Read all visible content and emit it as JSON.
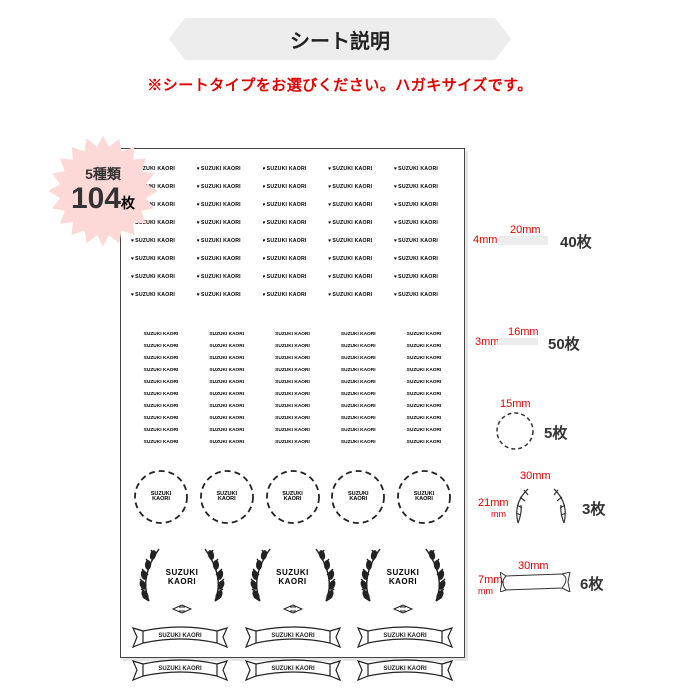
{
  "header": {
    "title": "シート説明",
    "subtitle": "※シートタイプをお選びください。ハガキサイズです。"
  },
  "starburst": {
    "line1": "5種類",
    "big": "104",
    "unit": "枚",
    "fill": "#fcd9d6"
  },
  "sample_name": "SUZUKI KAORI",
  "items": [
    {
      "width": "20mm",
      "height": "4mm",
      "count": "40枚",
      "type": "heart-label"
    },
    {
      "width": "16mm",
      "height": "3mm",
      "count": "50枚",
      "type": "plain-label"
    },
    {
      "diameter": "15mm",
      "count": "5枚",
      "type": "wreath"
    },
    {
      "width": "30mm",
      "height": "21mm",
      "height_unit_sep": true,
      "count": "3枚",
      "type": "laurel"
    },
    {
      "width": "30mm",
      "height": "7mm",
      "height_unit_sep": true,
      "count": "6枚",
      "type": "banner"
    }
  ],
  "colors": {
    "accent": "#e00000",
    "ribbon_bg": "#ededed",
    "sheet_border": "#444444"
  },
  "layout": {
    "heart_rows": 8,
    "heart_cols": 5,
    "plain_rows": 10,
    "plain_cols": 5,
    "wreath_count": 5,
    "laurel_count": 3,
    "banner_count": 6
  }
}
